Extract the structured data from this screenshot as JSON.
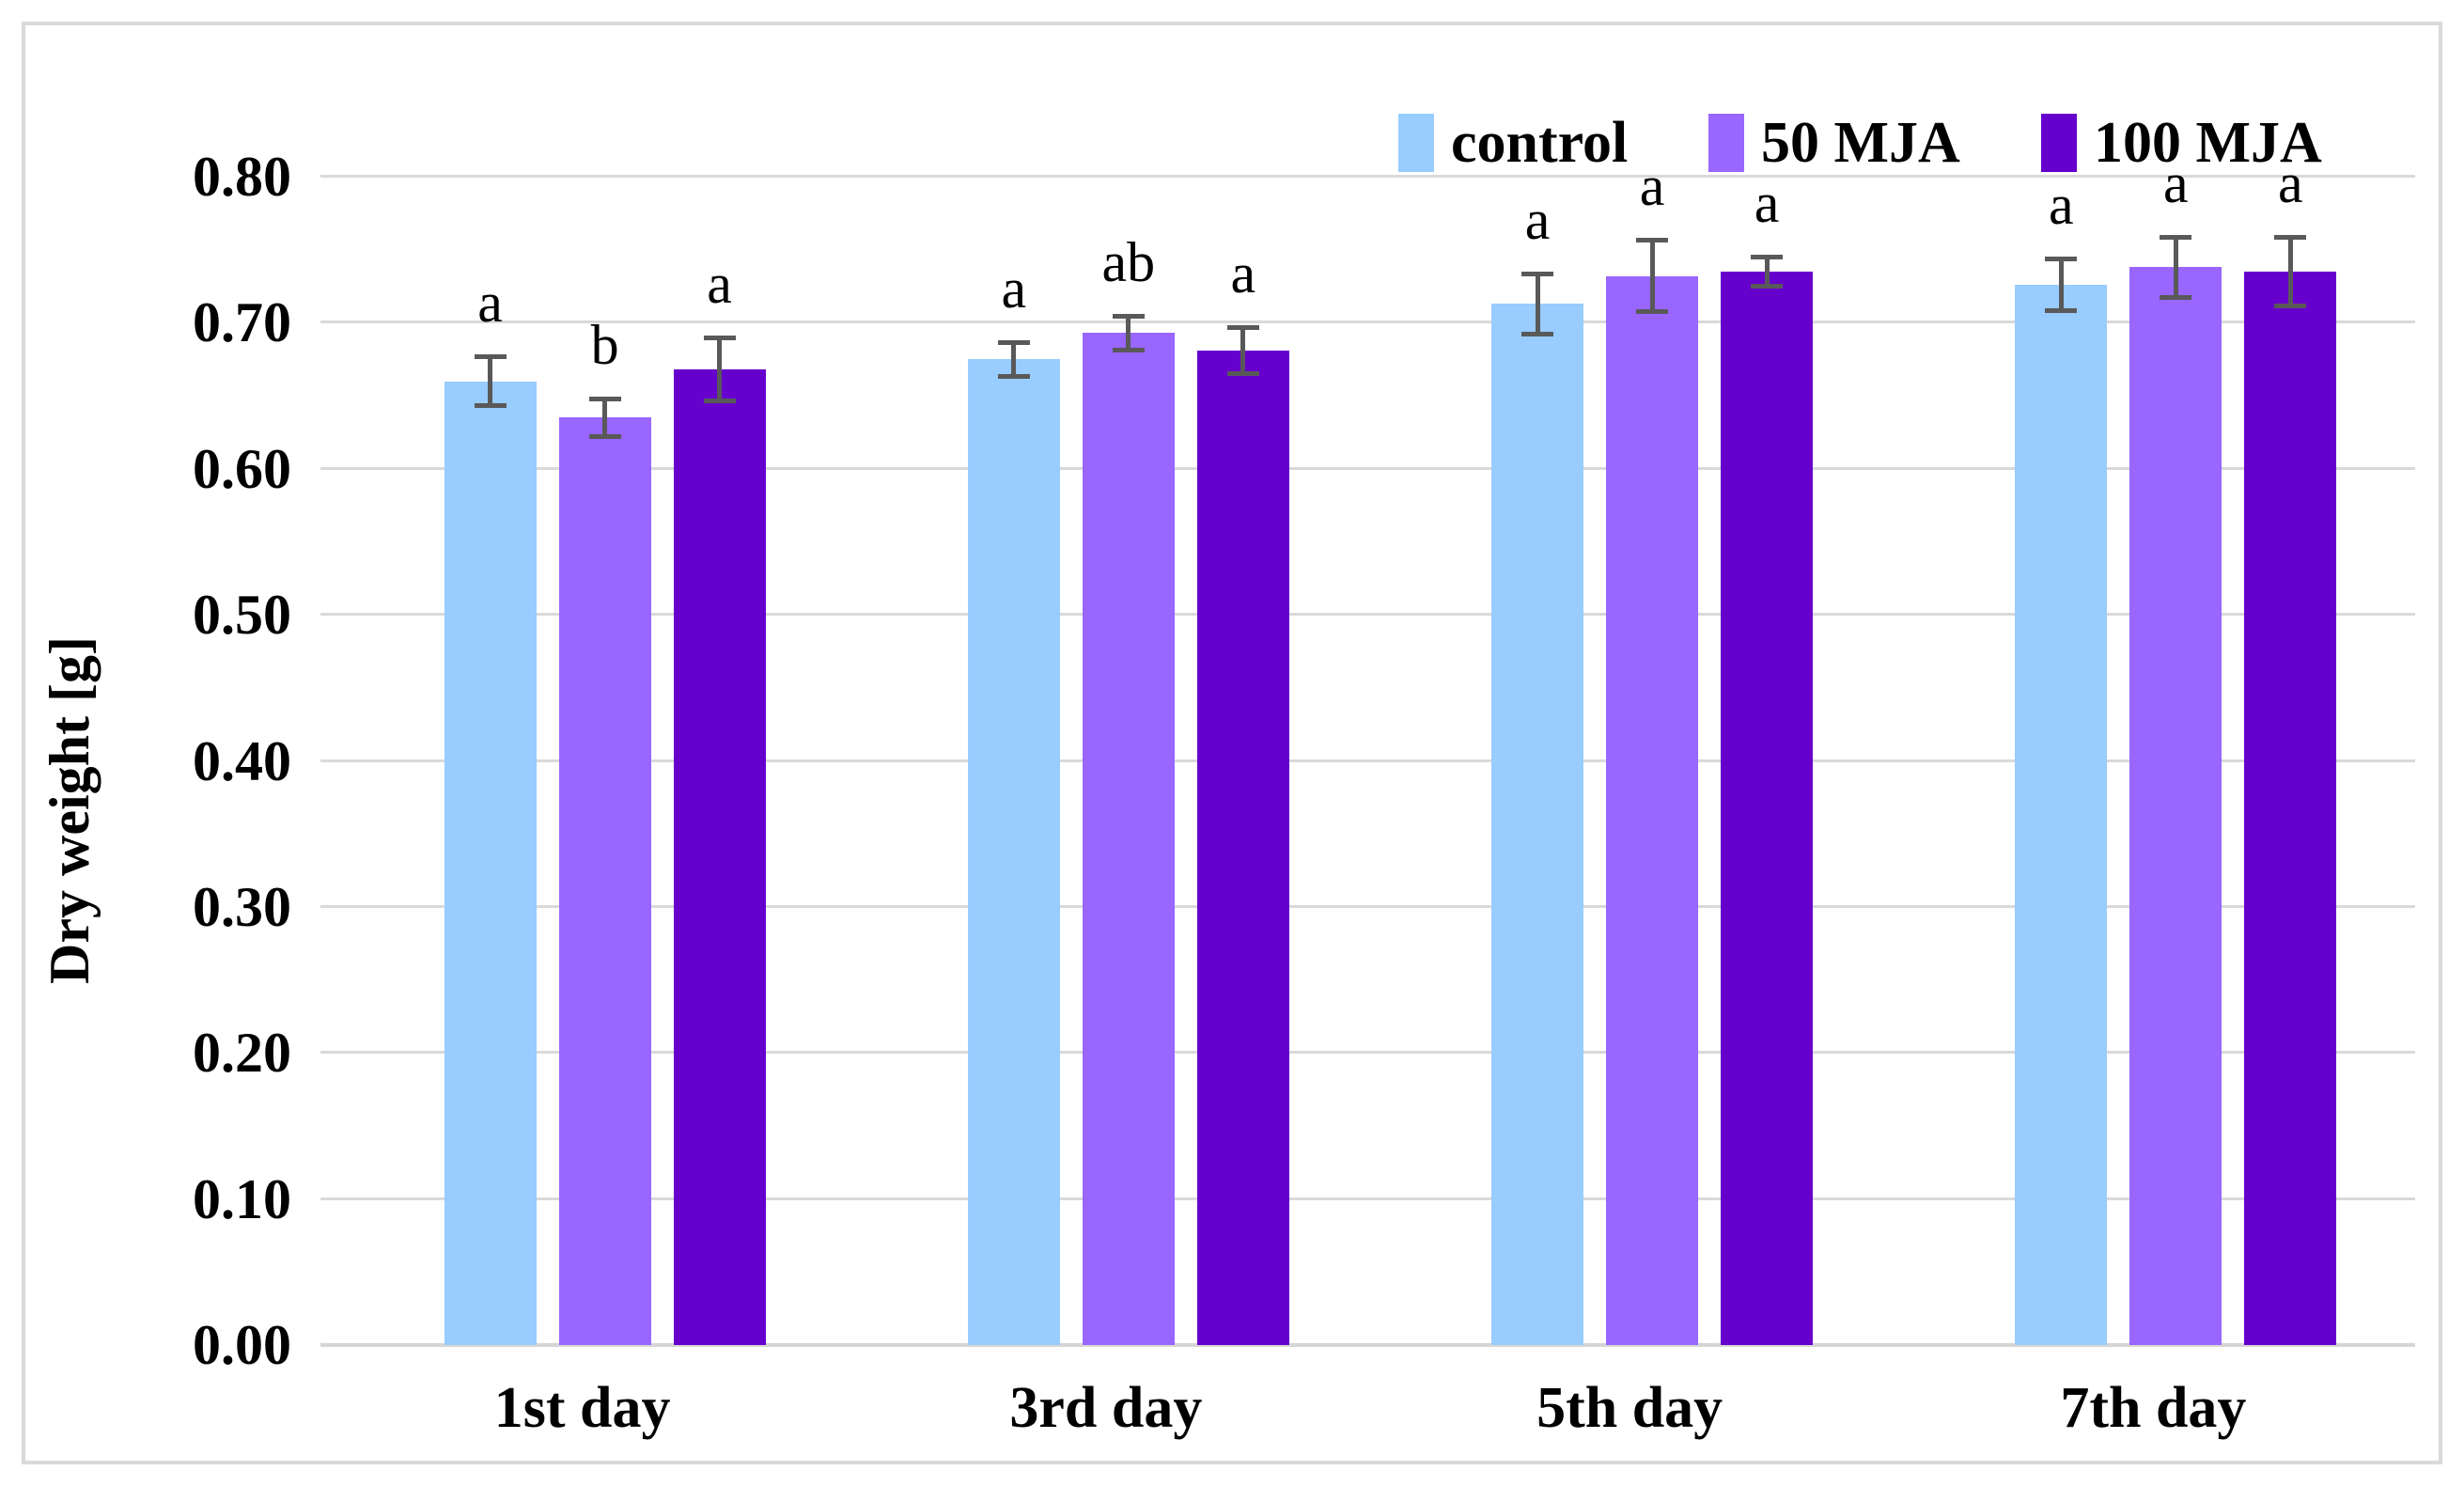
{
  "chart_data": {
    "type": "bar",
    "title": "",
    "ylabel": "Dry weight [g]",
    "xlabel": "",
    "ylim": [
      0.0,
      0.8
    ],
    "ytick_step": 0.1,
    "yticks": [
      "0.00",
      "0.10",
      "0.20",
      "0.30",
      "0.40",
      "0.50",
      "0.60",
      "0.70",
      "0.80"
    ],
    "grid": true,
    "legend_position": "top-right-horizontal",
    "categories": [
      "1st day",
      "3rd day",
      "5th day",
      "7th day"
    ],
    "series": [
      {
        "name": "control",
        "color": "#99CCFF",
        "values": [
          0.66,
          0.675,
          0.713,
          0.726
        ],
        "errors": [
          0.017,
          0.012,
          0.021,
          0.018
        ],
        "letters": [
          "a",
          "a",
          "a",
          "a"
        ]
      },
      {
        "name": "50 MJA",
        "color": "#9966FF",
        "values": [
          0.635,
          0.693,
          0.732,
          0.738
        ],
        "errors": [
          0.013,
          0.012,
          0.025,
          0.021
        ],
        "letters": [
          "b",
          "ab",
          "a",
          "a"
        ]
      },
      {
        "name": "100 MJA",
        "color": "#6600CC",
        "values": [
          0.668,
          0.681,
          0.735,
          0.735
        ],
        "errors": [
          0.022,
          0.016,
          0.01,
          0.024
        ],
        "letters": [
          "a",
          "a",
          "a",
          "a"
        ]
      }
    ],
    "error_bar_color": "#595959",
    "gridline_color": "#D9D9D9",
    "frame_border_color": "#D9D9D9",
    "axis_text_color": "#000000"
  }
}
